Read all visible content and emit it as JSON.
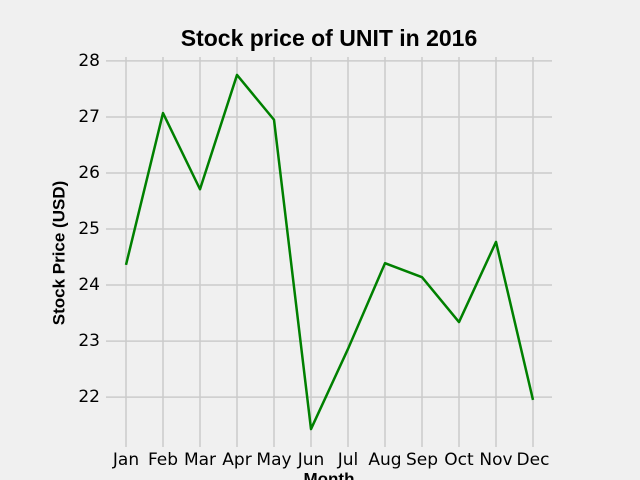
{
  "chart_data": {
    "type": "line",
    "title": "Stock price of UNIT in 2016",
    "x_label": "Month",
    "y_label": "Stock Price (USD)",
    "categories": [
      "Jan",
      "Feb",
      "Mar",
      "Apr",
      "May",
      "Jun",
      "Jul",
      "Aug",
      "Sep",
      "Oct",
      "Nov",
      "Dec"
    ],
    "series": [
      {
        "name": "UNIT",
        "color": "#008000",
        "values": [
          24.36,
          27.07,
          25.71,
          27.75,
          26.95,
          21.43,
          22.86,
          24.39,
          24.14,
          23.34,
          24.77,
          21.95
        ]
      }
    ],
    "ylim": [
      21.11,
      28.07
    ],
    "yticks": [
      22,
      23,
      24,
      25,
      26,
      27,
      28
    ],
    "grid": true
  }
}
